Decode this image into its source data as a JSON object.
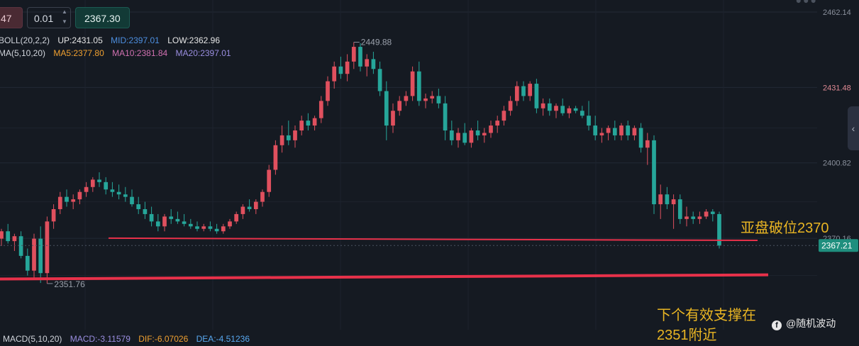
{
  "toolbar": {
    "lot_prefix": "47",
    "lot_step": "0.01",
    "price": "2367.30"
  },
  "indicators": {
    "boll": {
      "name": "BOLL(20,2,2)",
      "up": "UP:2431.05",
      "mid": "MID:2397.01",
      "low": "LOW:2362.96"
    },
    "ma": {
      "name": "MA(5,10,20)",
      "ma5": "MA5:2377.80",
      "ma10": "MA10:2381.84",
      "ma20": "MA20:2397.01"
    },
    "macd": {
      "name": "MACD(5,10,20)",
      "macd": "MACD:-3.11579",
      "dif": "DIF:-6.07026",
      "dea": "DEA:-4.51236"
    }
  },
  "annotations": {
    "asia_break": "亚盘破位2370",
    "support_line1": "下个有效支撑在",
    "support_line2": "2351附近"
  },
  "brand": "@随机波动",
  "colors": {
    "background": "#151a22",
    "bull": "#e0505e",
    "bear": "#26a69a",
    "support_line": "#e8314a",
    "annotation": "#e9b523",
    "axis_text": "#8a909c",
    "axis_text_red": "#e08a94",
    "boll_up": "#e6e6e6",
    "boll_mid": "#4d8fe0",
    "boll_low": "#e6e6e6",
    "ma5": "#f0a030",
    "ma10": "#d070b0",
    "ma20": "#9a8ee0",
    "macd": "#9a8ee0",
    "dif": "#f0a030",
    "dea": "#58a8f0"
  },
  "chart_data": {
    "type": "candlestick",
    "y_axis": {
      "range": [
        2345.1,
        2462.14
      ],
      "ticks": [
        2462.14,
        2431.48,
        2400.82,
        2370.16
      ],
      "current_price_label": "2367.21"
    },
    "high_label": "2449.88",
    "low_label": "2351.76",
    "support_lines": [
      {
        "from": 2370.2,
        "to": 2369.3,
        "note": "2370"
      },
      {
        "from": 2353.6,
        "to": 2355.3,
        "note": "2351"
      }
    ],
    "current_price": 2367.21,
    "candles": [
      [
        2370.0,
        2374.0,
        2367.0,
        2373.0
      ],
      [
        2373.0,
        2376.0,
        2368.0,
        2369.0
      ],
      [
        2369.0,
        2372.0,
        2365.0,
        2371.0
      ],
      [
        2371.0,
        2373.0,
        2362.0,
        2363.0
      ],
      [
        2363.0,
        2366.0,
        2355.0,
        2357.0
      ],
      [
        2357.0,
        2372.0,
        2354.0,
        2370.0
      ],
      [
        2370.0,
        2375.0,
        2352.0,
        2356.0
      ],
      [
        2356.0,
        2379.0,
        2351.76,
        2377.0
      ],
      [
        2377.0,
        2384.0,
        2374.0,
        2382.0
      ],
      [
        2382.0,
        2389.0,
        2380.0,
        2387.0
      ],
      [
        2387.0,
        2390.0,
        2383.0,
        2385.0
      ],
      [
        2385.0,
        2388.0,
        2382.0,
        2386.0
      ],
      [
        2386.0,
        2390.0,
        2384.0,
        2389.0
      ],
      [
        2389.0,
        2393.0,
        2387.0,
        2391.0
      ],
      [
        2391.0,
        2395.0,
        2389.0,
        2394.0
      ],
      [
        2394.0,
        2397.0,
        2391.0,
        2393.0
      ],
      [
        2393.0,
        2395.0,
        2388.0,
        2390.0
      ],
      [
        2390.0,
        2393.0,
        2387.0,
        2389.0
      ],
      [
        2389.0,
        2392.0,
        2386.0,
        2388.0
      ],
      [
        2388.0,
        2391.0,
        2385.0,
        2387.0
      ],
      [
        2387.0,
        2390.0,
        2383.0,
        2384.0
      ],
      [
        2384.0,
        2387.0,
        2380.0,
        2382.0
      ],
      [
        2382.0,
        2385.0,
        2378.0,
        2380.0
      ],
      [
        2380.0,
        2383.0,
        2375.0,
        2377.0
      ],
      [
        2377.0,
        2380.0,
        2373.0,
        2375.0
      ],
      [
        2375.0,
        2380.0,
        2373.0,
        2379.0
      ],
      [
        2379.0,
        2382.0,
        2376.0,
        2378.0
      ],
      [
        2378.0,
        2381.0,
        2376.0,
        2377.0
      ],
      [
        2377.0,
        2380.0,
        2375.0,
        2376.0
      ],
      [
        2376.0,
        2378.0,
        2374.0,
        2375.0
      ],
      [
        2375.0,
        2377.0,
        2373.0,
        2374.0
      ],
      [
        2374.0,
        2376.0,
        2373.0,
        2375.0
      ],
      [
        2375.0,
        2377.0,
        2373.0,
        2374.0
      ],
      [
        2374.0,
        2376.0,
        2372.0,
        2373.0
      ],
      [
        2373.0,
        2376.0,
        2372.0,
        2375.0
      ],
      [
        2375.0,
        2378.0,
        2374.0,
        2377.0
      ],
      [
        2377.0,
        2381.0,
        2376.0,
        2380.0
      ],
      [
        2380.0,
        2384.0,
        2378.0,
        2383.0
      ],
      [
        2383.0,
        2386.0,
        2381.0,
        2382.0
      ],
      [
        2382.0,
        2386.0,
        2380.0,
        2385.0
      ],
      [
        2385.0,
        2390.0,
        2383.0,
        2389.0
      ],
      [
        2389.0,
        2400.0,
        2387.0,
        2398.0
      ],
      [
        2398.0,
        2410.0,
        2396.0,
        2408.0
      ],
      [
        2408.0,
        2416.0,
        2405.0,
        2412.0
      ],
      [
        2412.0,
        2418.0,
        2408.0,
        2410.0
      ],
      [
        2410.0,
        2416.0,
        2407.0,
        2414.0
      ],
      [
        2414.0,
        2420.0,
        2412.0,
        2418.0
      ],
      [
        2418.0,
        2421.0,
        2414.0,
        2416.0
      ],
      [
        2416.0,
        2420.0,
        2414.0,
        2419.0
      ],
      [
        2419.0,
        2428.0,
        2417.0,
        2426.0
      ],
      [
        2426.0,
        2436.0,
        2424.0,
        2434.0
      ],
      [
        2434.0,
        2442.0,
        2431.0,
        2440.0
      ],
      [
        2440.0,
        2444.0,
        2435.0,
        2437.0
      ],
      [
        2437.0,
        2445.0,
        2434.0,
        2442.0
      ],
      [
        2442.0,
        2449.88,
        2439.0,
        2448.0
      ],
      [
        2448.0,
        2449.5,
        2438.0,
        2440.0
      ],
      [
        2440.0,
        2445.0,
        2436.0,
        2443.0
      ],
      [
        2443.0,
        2446.0,
        2437.0,
        2439.0
      ],
      [
        2439.0,
        2442.0,
        2428.0,
        2430.0
      ],
      [
        2430.0,
        2434.0,
        2410.0,
        2416.0
      ],
      [
        2416.0,
        2425.0,
        2413.0,
        2422.0
      ],
      [
        2422.0,
        2428.0,
        2420.0,
        2426.0
      ],
      [
        2426.0,
        2430.0,
        2424.0,
        2428.0
      ],
      [
        2428.0,
        2440.0,
        2426.0,
        2438.0
      ],
      [
        2438.0,
        2442.0,
        2424.0,
        2426.0
      ],
      [
        2426.0,
        2429.0,
        2423.0,
        2427.0
      ],
      [
        2427.0,
        2430.0,
        2425.0,
        2428.0
      ],
      [
        2428.0,
        2431.0,
        2423.0,
        2425.0
      ],
      [
        2425.0,
        2428.0,
        2410.0,
        2414.0
      ],
      [
        2414.0,
        2418.0,
        2408.0,
        2410.0
      ],
      [
        2410.0,
        2415.0,
        2407.0,
        2413.0
      ],
      [
        2413.0,
        2417.0,
        2408.0,
        2409.0
      ],
      [
        2409.0,
        2415.0,
        2407.0,
        2414.0
      ],
      [
        2414.0,
        2418.0,
        2410.0,
        2412.0
      ],
      [
        2412.0,
        2415.0,
        2409.0,
        2413.0
      ],
      [
        2413.0,
        2418.0,
        2411.0,
        2416.0
      ],
      [
        2416.0,
        2420.0,
        2413.0,
        2418.0
      ],
      [
        2418.0,
        2424.0,
        2416.0,
        2422.0
      ],
      [
        2422.0,
        2428.0,
        2420.0,
        2426.0
      ],
      [
        2426.0,
        2434.0,
        2424.0,
        2432.0
      ],
      [
        2432.0,
        2434.0,
        2426.0,
        2428.0
      ],
      [
        2428.0,
        2434.0,
        2426.0,
        2433.0
      ],
      [
        2433.0,
        2435.0,
        2421.0,
        2423.0
      ],
      [
        2423.0,
        2427.0,
        2420.0,
        2425.0
      ],
      [
        2425.0,
        2427.0,
        2420.0,
        2422.0
      ],
      [
        2422.0,
        2425.0,
        2419.0,
        2424.0
      ],
      [
        2424.0,
        2427.0,
        2420.0,
        2421.0
      ],
      [
        2421.0,
        2424.0,
        2419.0,
        2423.0
      ],
      [
        2423.0,
        2424.0,
        2421.0,
        2422.0
      ],
      [
        2422.0,
        2424.0,
        2419.0,
        2420.0
      ],
      [
        2420.0,
        2426.0,
        2414.0,
        2416.0
      ],
      [
        2416.0,
        2420.0,
        2410.0,
        2412.0
      ],
      [
        2412.0,
        2415.0,
        2409.0,
        2413.0
      ],
      [
        2413.0,
        2416.0,
        2410.0,
        2415.0
      ],
      [
        2415.0,
        2418.0,
        2410.0,
        2412.0
      ],
      [
        2412.0,
        2417.0,
        2410.0,
        2416.0
      ],
      [
        2416.0,
        2418.0,
        2410.0,
        2412.0
      ],
      [
        2412.0,
        2416.0,
        2410.0,
        2415.0
      ],
      [
        2415.0,
        2417.0,
        2405.0,
        2407.0
      ],
      [
        2407.0,
        2413.0,
        2400.0,
        2410.0
      ],
      [
        2410.0,
        2412.0,
        2380.0,
        2384.0
      ],
      [
        2384.0,
        2392.0,
        2378.0,
        2388.0
      ],
      [
        2388.0,
        2391.0,
        2382.0,
        2384.0
      ],
      [
        2384.0,
        2388.0,
        2374.0,
        2386.0
      ],
      [
        2386.0,
        2388.0,
        2376.0,
        2378.0
      ],
      [
        2378.0,
        2383.0,
        2375.0,
        2379.0
      ],
      [
        2379.0,
        2381.0,
        2376.0,
        2378.0
      ],
      [
        2378.0,
        2381.0,
        2376.0,
        2379.0
      ],
      [
        2379.0,
        2382.0,
        2378.0,
        2381.0
      ],
      [
        2381.0,
        2382.0,
        2377.0,
        2380.0
      ],
      [
        2380.0,
        2381.0,
        2366.0,
        2367.21
      ]
    ]
  }
}
